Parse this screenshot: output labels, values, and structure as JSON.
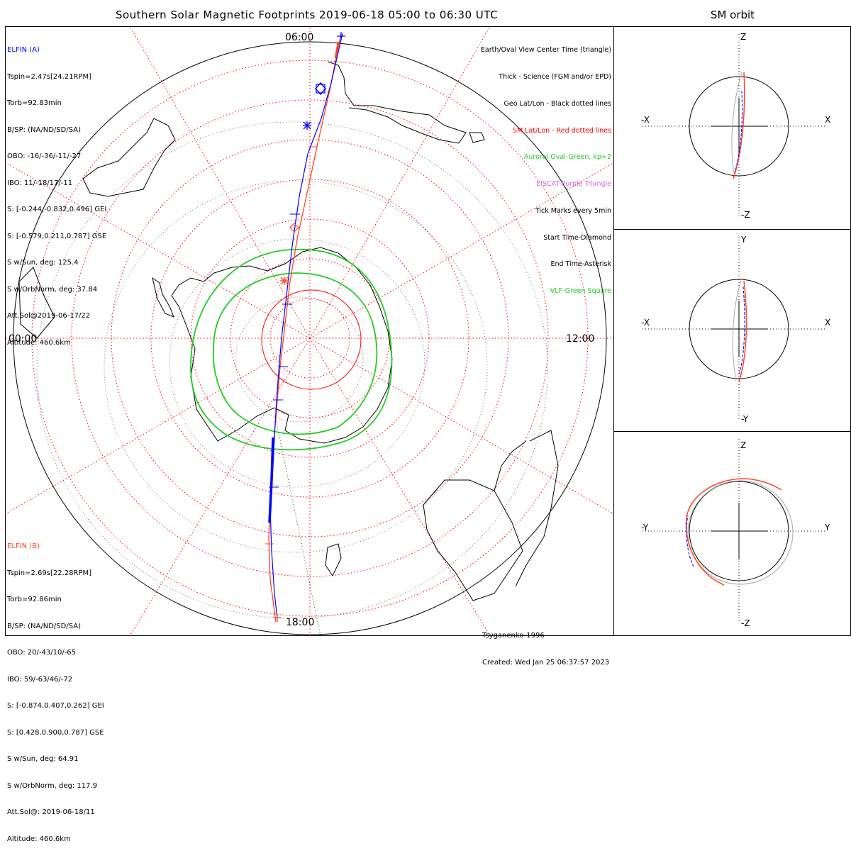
{
  "title": "Southern Solar Magnetic Footprints 2019-06-18 05:00 to 06:30 UTC",
  "sm_title": "SM orbit",
  "mlt_labels": {
    "top": "06:00",
    "left": "00:00",
    "right": "12:00",
    "bottom": "18:00"
  },
  "elfin_a": {
    "name": "ELFIN (A)",
    "lines": [
      "Tspin=2.47s[24.21RPM]",
      "Torb=92.83min",
      "B/SP: (NA/ND/SD/SA)",
      "OBO: -16/-36/-11/-27",
      "IBO: 11/-18/17/-11",
      "S: [-0.244,-0.832,0.496] GEI",
      "S: [-0.579,0.211,0.787] GSE",
      "S w/Sun, deg: 125.4",
      "S w/OrbNorm, deg: 37.84",
      "Att.Sol@2019-06-17/22",
      "Altitude: 460.6km"
    ]
  },
  "elfin_b": {
    "name": "ELFIN (B)",
    "lines": [
      "Tspin=2.69s[22.28RPM]",
      "Torb=92.86min",
      "B/SP: (NA/ND/SD/SA)",
      "OBO: 20/-43/10/-65",
      "IBO: 59/-63/46/-72",
      "S: [-0.874,0.407,0.262] GEI",
      "S: [0.428,0.900,0.787] GSE",
      "S w/Sun, deg: 64.91",
      "S w/OrbNorm, deg: 117.9",
      "Att.Sol@: 2019-06-18/11",
      "Altitude: 460.6km"
    ]
  },
  "legend": [
    {
      "text": "Earth/Oval View Center Time (triangle)",
      "color": "#000000"
    },
    {
      "text": "Thick - Science (FGM and/or EPD)",
      "color": "#000000"
    },
    {
      "text": "Geo Lat/Lon - Black dotted lines",
      "color": "#000000"
    },
    {
      "text": "SM Lat/Lon - Red dotted lines",
      "color": "#ff0000"
    },
    {
      "text": "Auroral Oval-Green, kp=2",
      "color": "#22cc22"
    },
    {
      "text": "EISCAT-Purple Triangle",
      "color": "#dd66dd"
    },
    {
      "text": "Tick Marks every 5min",
      "color": "#000000"
    },
    {
      "text": "Start Time-Diamond",
      "color": "#000000"
    },
    {
      "text": "End Time-Asterisk",
      "color": "#000000"
    },
    {
      "text": "VLF-Green Square",
      "color": "#22cc22"
    }
  ],
  "footer": {
    "model": "Tsyganenko-1996",
    "created": "Created: Wed Jan 25 06:37:57 2023"
  },
  "sm_panels": [
    {
      "top": "Z",
      "bottom": "-Z",
      "left": "-X",
      "right": "X"
    },
    {
      "top": "Y",
      "bottom": "-Y",
      "left": "-X",
      "right": "X"
    },
    {
      "top": "Z",
      "bottom": "-Z",
      "left": "-Y",
      "right": "Y"
    }
  ],
  "colors": {
    "elfin_a": "#0000ff",
    "elfin_b": "#ff4422",
    "sm_grid": "#ff0000",
    "auroral_oval": "#22cc22",
    "geo_grid": "#000000"
  }
}
